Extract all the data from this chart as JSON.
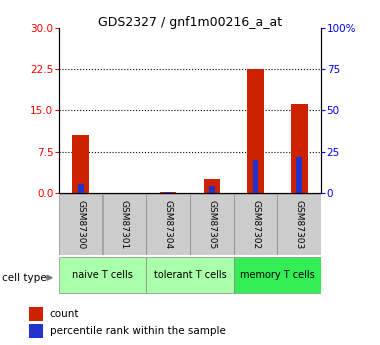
{
  "title": "GDS2327 / gnf1m00216_a_at",
  "samples": [
    "GSM87300",
    "GSM87301",
    "GSM87304",
    "GSM87305",
    "GSM87302",
    "GSM87303"
  ],
  "count_values": [
    10.5,
    0.05,
    0.3,
    2.5,
    22.5,
    16.2
  ],
  "percentile_values": [
    5.5,
    0.0,
    1.0,
    4.5,
    20.0,
    22.0
  ],
  "left_ylim": [
    0,
    30
  ],
  "right_ylim": [
    0,
    100
  ],
  "left_yticks": [
    0,
    7.5,
    15,
    22.5,
    30
  ],
  "right_yticks": [
    0,
    25,
    50,
    75,
    100
  ],
  "right_yticklabels": [
    "0",
    "25",
    "50",
    "75",
    "100%"
  ],
  "dotted_lines": [
    7.5,
    15,
    22.5
  ],
  "bar_color": "#cc2200",
  "percentile_color": "#2233cc",
  "cell_types": [
    {
      "label": "naive T cells",
      "start": 0,
      "end": 1,
      "color": "#aaffaa"
    },
    {
      "label": "tolerant T cells",
      "start": 2,
      "end": 3,
      "color": "#aaffaa"
    },
    {
      "label": "memory T cells",
      "start": 4,
      "end": 5,
      "color": "#33ee55"
    }
  ],
  "cell_type_label": "cell type",
  "legend_count_label": "count",
  "legend_percentile_label": "percentile rank within the sample",
  "plot_bg": "#ffffff",
  "sample_box_color": "#cccccc",
  "bar_width": 0.38,
  "percentile_bar_width": 0.13
}
